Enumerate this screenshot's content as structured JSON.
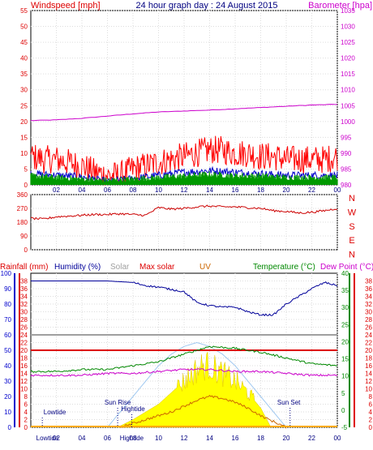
{
  "page": {
    "title": "24 hour graph day : 24 August 2015"
  },
  "colors": {
    "wind": "#ff0000",
    "gust": "#009900",
    "avg": "#0000cc",
    "baro": "#cc00cc",
    "dir": "#cc0000",
    "hum": "#000099",
    "solar_pot": "#a0c8f0",
    "solar": "#ffff00",
    "uv": "#cc6600",
    "temp": "#008800",
    "dew": "#cc00cc",
    "rain": "#0000ff",
    "maxsolar": "#dd0000",
    "grey": "#a0a0a0"
  },
  "chart_data": [
    {
      "type": "line",
      "panel": "wind-baro",
      "title": "24 hour graph day : 24 August 2015",
      "left_axis_label": "Windspeed [mph]",
      "right_axis_label": "Barometer [hpa]",
      "left_ticks": [
        "0",
        "5",
        "10",
        "15",
        "20",
        "25",
        "30",
        "35",
        "40",
        "45",
        "50",
        "55"
      ],
      "right_ticks": [
        "980",
        "985",
        "990",
        "995",
        "1000",
        "1005",
        "1010",
        "1015",
        "1020",
        "1025",
        "1030",
        "1035"
      ],
      "left_range": [
        0,
        55
      ],
      "right_range": [
        980,
        1035
      ],
      "x_ticks": [
        "02",
        "04",
        "06",
        "08",
        "10",
        "12",
        "14",
        "16",
        "18",
        "20",
        "22",
        "00"
      ],
      "series": [
        {
          "key": "baro",
          "hours": [
            0,
            2,
            4,
            6,
            8,
            10,
            12,
            14,
            16,
            18,
            20,
            22,
            24
          ],
          "values": [
            1000.3,
            1000.5,
            1001.0,
            1001.7,
            1002.4,
            1003.0,
            1003.3,
            1003.6,
            1004.0,
            1004.4,
            1004.8,
            1005.2,
            1005.4
          ]
        },
        {
          "key": "wind",
          "hours": [
            0,
            1,
            2,
            3,
            4,
            5,
            6,
            7,
            8,
            9,
            10,
            11,
            12,
            13,
            14,
            15,
            16,
            17,
            18,
            19,
            20,
            21,
            22,
            23,
            24
          ],
          "values": [
            9,
            8,
            8,
            7,
            6,
            4,
            3,
            3,
            5,
            6,
            7,
            8,
            9,
            10,
            11,
            11,
            10,
            10,
            9,
            9,
            8,
            8,
            8,
            8,
            9
          ]
        },
        {
          "key": "avg",
          "hours": [
            0,
            2,
            4,
            6,
            8,
            10,
            12,
            14,
            16,
            18,
            20,
            22,
            24
          ],
          "values": [
            3.5,
            3,
            2.5,
            1,
            2,
            3,
            4,
            4.5,
            4,
            3.5,
            3,
            3,
            3
          ]
        },
        {
          "key": "gust",
          "hours": [
            0,
            2,
            4,
            6,
            8,
            10,
            12,
            14,
            16,
            18,
            20,
            22,
            24
          ],
          "values": [
            2,
            1.5,
            1,
            0.5,
            1,
            1.5,
            2,
            2.5,
            2,
            2,
            1.5,
            1.5,
            1.5
          ]
        }
      ]
    },
    {
      "type": "line",
      "panel": "wind-direction",
      "left_ticks": [
        "0",
        "90",
        "180",
        "270",
        "360"
      ],
      "right_labels": [
        "N",
        "W",
        "S",
        "E",
        "N"
      ],
      "left_range": [
        0,
        360
      ],
      "x_ticks": [
        "02",
        "04",
        "06",
        "08",
        "10",
        "12",
        "14",
        "16",
        "18",
        "20",
        "22",
        "00"
      ],
      "series": [
        {
          "key": "dir",
          "hours": [
            0,
            1,
            2,
            3,
            4,
            5,
            6,
            7,
            8,
            9,
            10,
            11,
            12,
            13,
            14,
            15,
            16,
            17,
            18,
            19,
            20,
            21,
            22,
            23,
            24
          ],
          "values": [
            205,
            200,
            215,
            220,
            225,
            230,
            230,
            235,
            230,
            225,
            275,
            265,
            270,
            280,
            285,
            280,
            280,
            275,
            270,
            255,
            250,
            240,
            245,
            255,
            270
          ]
        }
      ]
    },
    {
      "type": "line",
      "panel": "weather",
      "legend": [
        "Rainfall (mm)",
        "Humidity (%)",
        "Solar",
        "Max solar",
        "UV",
        "Temperature (°C)",
        "Dew Point (°C)"
      ],
      "rain_ticks": [
        "0",
        "10",
        "20",
        "30",
        "40",
        "50",
        "60",
        "70",
        "80",
        "90",
        "100"
      ],
      "hum_ticks": [
        "0",
        "2",
        "4",
        "6",
        "8",
        "10",
        "12",
        "14",
        "16",
        "18",
        "20",
        "22",
        "24",
        "26",
        "28",
        "30",
        "32",
        "34",
        "36",
        "38"
      ],
      "temp_ticks": [
        "-5",
        "0",
        "5",
        "10",
        "15",
        "20",
        "25",
        "30",
        "35",
        "40"
      ],
      "uv_ticks": [
        "0",
        "2",
        "4",
        "6",
        "8",
        "10",
        "12",
        "14",
        "16",
        "18",
        "20",
        "22",
        "24",
        "26",
        "28",
        "30",
        "32",
        "34",
        "36",
        "38"
      ],
      "x_ticks": [
        "02",
        "04",
        "06",
        "08",
        "10",
        "12",
        "14",
        "16",
        "18",
        "20",
        "22",
        "00"
      ],
      "annotations": [
        "Lowtide",
        "Sun Rise",
        "Hightide",
        "Sun Set"
      ],
      "x_labels_marks": [
        "Lowtide",
        "Hightide"
      ],
      "series": [
        {
          "key": "hum",
          "hours": [
            0,
            2,
            4,
            6,
            8,
            9,
            10,
            12,
            13,
            14,
            15,
            16,
            17,
            18,
            19,
            20,
            21,
            22,
            23,
            24
          ],
          "values": [
            95,
            95,
            95,
            95,
            94,
            92,
            91,
            88,
            81,
            79,
            78,
            78,
            75,
            73,
            73,
            80,
            85,
            90,
            94,
            92
          ]
        },
        {
          "key": "temp",
          "hours": [
            0,
            2,
            4,
            6,
            8,
            10,
            12,
            14,
            16,
            18,
            20,
            22,
            24
          ],
          "values": [
            14.5,
            14.5,
            15,
            15,
            16,
            17,
            19,
            21,
            20.5,
            19.5,
            18,
            16.5,
            16
          ]
        },
        {
          "key": "dew",
          "hours": [
            0,
            2,
            4,
            6,
            8,
            10,
            12,
            14,
            16,
            18,
            20,
            22,
            24
          ],
          "values": [
            13.5,
            13.5,
            13.5,
            14,
            14,
            14.5,
            15,
            15,
            14.5,
            14.5,
            14,
            13.5,
            13.5
          ]
        },
        {
          "key": "grey",
          "hours": [
            0,
            24
          ],
          "values": [
            24,
            24
          ]
        },
        {
          "key": "maxsolar",
          "hours": [
            0,
            24
          ],
          "values": [
            20,
            20
          ]
        },
        {
          "key": "solar_pot",
          "hours": [
            6,
            7,
            8,
            9,
            10,
            11,
            12,
            13,
            14,
            15,
            16,
            17,
            18,
            19,
            20
          ],
          "values": [
            0,
            4,
            8,
            12,
            16,
            19,
            21,
            22,
            21,
            19,
            16,
            12,
            8,
            4,
            0
          ]
        },
        {
          "key": "solar",
          "hours": [
            6.8,
            8,
            9,
            10,
            11,
            12,
            13,
            13.5,
            14,
            14.5,
            15,
            16,
            17,
            18,
            18.8
          ],
          "values": [
            0,
            2,
            4,
            6,
            9,
            12,
            15,
            16,
            16,
            15,
            14,
            12,
            9,
            5,
            0
          ]
        },
        {
          "key": "uv",
          "hours": [
            7,
            8,
            9,
            10,
            11,
            12,
            13,
            14,
            15,
            16,
            17,
            18,
            19,
            20
          ],
          "values": [
            0,
            1,
            2,
            3,
            4,
            5.5,
            7,
            8,
            7.5,
            6.5,
            5,
            3,
            1.5,
            0
          ]
        },
        {
          "key": "rain",
          "hours": [
            0,
            24
          ],
          "values": [
            0,
            0
          ]
        }
      ]
    }
  ]
}
